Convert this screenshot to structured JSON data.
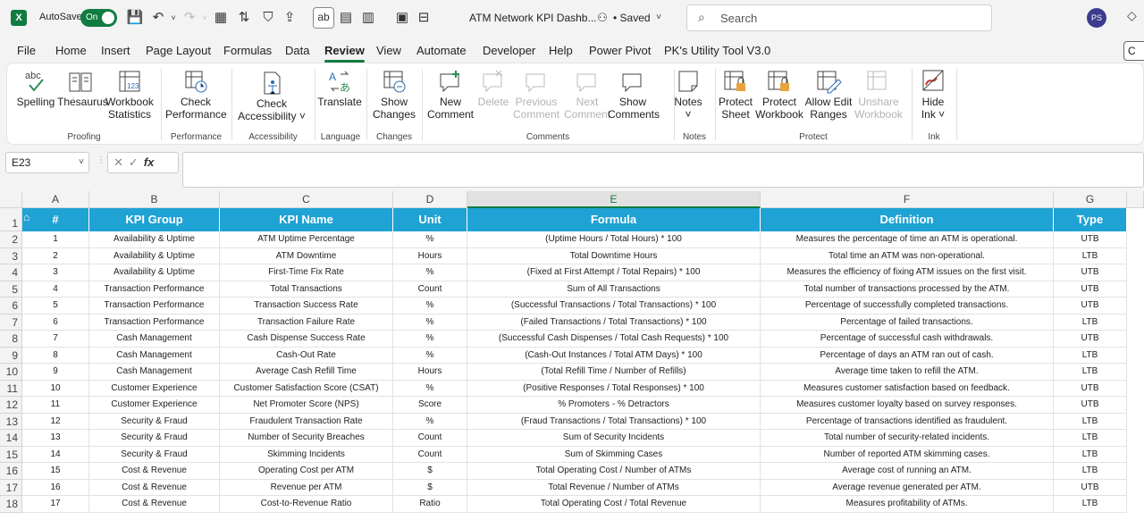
{
  "titlebar": {
    "app_icon_letter": "X",
    "autosave_label": "AutoSave",
    "autosave_state": "On",
    "document_title": "ATM Network KPI Dashb...",
    "save_status": "• Saved",
    "search_placeholder": "Search",
    "user_initials": "PS"
  },
  "menu": {
    "tabs": [
      "File",
      "Home",
      "Insert",
      "Page Layout",
      "Formulas",
      "Data",
      "Review",
      "View",
      "Automate",
      "Developer",
      "Help",
      "Power Pivot",
      "PK's Utility Tool V3.0"
    ],
    "active": "Review"
  },
  "ribbon": {
    "buttons": [
      {
        "id": "spelling",
        "line1": "Spelling",
        "line2": "",
        "icon_text": "abc",
        "disabled": false
      },
      {
        "id": "thesaurus",
        "line1": "Thesaurus",
        "line2": "",
        "disabled": false
      },
      {
        "id": "workbook-statistics",
        "line1": "Workbook",
        "line2": "Statistics",
        "icon_text": "123",
        "disabled": false
      },
      {
        "id": "check-performance",
        "line1": "Check",
        "line2": "Performance",
        "disabled": false
      },
      {
        "id": "check-accessibility",
        "line1": "Check",
        "line2": "Accessibility ˅",
        "disabled": false
      },
      {
        "id": "translate",
        "line1": "Translate",
        "line2": "",
        "disabled": false
      },
      {
        "id": "show-changes",
        "line1": "Show",
        "line2": "Changes",
        "disabled": false
      },
      {
        "id": "new-comment",
        "line1": "New",
        "line2": "Comment",
        "disabled": false
      },
      {
        "id": "delete",
        "line1": "Delete",
        "line2": "",
        "disabled": true
      },
      {
        "id": "previous-comment",
        "line1": "Previous",
        "line2": "Comment",
        "disabled": true
      },
      {
        "id": "next-comment",
        "line1": "Next",
        "line2": "Comment",
        "disabled": true
      },
      {
        "id": "show-comments",
        "line1": "Show",
        "line2": "Comments",
        "disabled": false
      },
      {
        "id": "notes",
        "line1": "Notes",
        "line2": "˅",
        "disabled": false
      },
      {
        "id": "protect-sheet",
        "line1": "Protect",
        "line2": "Sheet",
        "disabled": false
      },
      {
        "id": "protect-workbook",
        "line1": "Protect",
        "line2": "Workbook",
        "disabled": false
      },
      {
        "id": "allow-edit-ranges",
        "line1": "Allow Edit",
        "line2": "Ranges",
        "disabled": false
      },
      {
        "id": "unshare-workbook",
        "line1": "Unshare",
        "line2": "Workbook",
        "disabled": true
      },
      {
        "id": "hide-ink",
        "line1": "Hide",
        "line2": "Ink ˅",
        "disabled": false
      }
    ],
    "groups": [
      "Proofing",
      "Performance",
      "Accessibility",
      "Language",
      "Changes",
      "Comments",
      "Notes",
      "Protect",
      "Ink"
    ]
  },
  "formula_bar": {
    "name_box": "E23",
    "cancel_glyph": "✕",
    "enter_glyph": "✓",
    "fx_label": "fx",
    "formula": ""
  },
  "sheet": {
    "column_letters": [
      "A",
      "B",
      "C",
      "D",
      "E",
      "F",
      "G"
    ],
    "selected_column": "E",
    "row_numbers": [
      "1",
      "2",
      "3",
      "4",
      "5",
      "6",
      "7",
      "8",
      "9",
      "10",
      "11",
      "12",
      "13",
      "14",
      "15",
      "16",
      "17",
      "18"
    ],
    "header_color": "#1fa2d4",
    "headers": [
      "#",
      "KPI  Group",
      "KPI Name",
      "Unit",
      "Formula",
      "Definition",
      "Type"
    ],
    "rows": [
      [
        "1",
        "Availability & Uptime",
        "ATM Uptime Percentage",
        "%",
        "(Uptime Hours / Total Hours) * 100",
        "Measures the percentage of time an ATM is operational.",
        "UTB"
      ],
      [
        "2",
        "Availability & Uptime",
        "ATM Downtime",
        "Hours",
        "Total Downtime Hours",
        "Total time an ATM was non-operational.",
        "LTB"
      ],
      [
        "3",
        "Availability & Uptime",
        "First-Time Fix Rate",
        "%",
        "(Fixed at First Attempt / Total Repairs) * 100",
        "Measures the efficiency of fixing ATM issues on the first visit.",
        "UTB"
      ],
      [
        "4",
        "Transaction Performance",
        "Total Transactions",
        "Count",
        "Sum of All Transactions",
        "Total number of transactions processed by the ATM.",
        "UTB"
      ],
      [
        "5",
        "Transaction Performance",
        "Transaction Success Rate",
        "%",
        "(Successful Transactions / Total Transactions) * 100",
        "Percentage of successfully completed transactions.",
        "UTB"
      ],
      [
        "6",
        "Transaction Performance",
        "Transaction Failure Rate",
        "%",
        "(Failed Transactions / Total Transactions) * 100",
        "Percentage of failed transactions.",
        "LTB"
      ],
      [
        "7",
        "Cash Management",
        "Cash Dispense Success Rate",
        "%",
        "(Successful Cash Dispenses / Total Cash Requests) * 100",
        "Percentage of successful cash withdrawals.",
        "UTB"
      ],
      [
        "8",
        "Cash Management",
        "Cash-Out Rate",
        "%",
        "(Cash-Out Instances / Total ATM Days) * 100",
        "Percentage of days an ATM ran out of cash.",
        "LTB"
      ],
      [
        "9",
        "Cash Management",
        "Average Cash Refill Time",
        "Hours",
        "(Total Refill Time / Number of Refills)",
        "Average time taken to refill the ATM.",
        "LTB"
      ],
      [
        "10",
        "Customer Experience",
        "Customer Satisfaction Score (CSAT)",
        "%",
        "(Positive Responses / Total Responses) * 100",
        "Measures customer satisfaction based on feedback.",
        "UTB"
      ],
      [
        "11",
        "Customer Experience",
        "Net Promoter Score (NPS)",
        "Score",
        "% Promoters - % Detractors",
        "Measures customer loyalty based on survey responses.",
        "UTB"
      ],
      [
        "12",
        "Security & Fraud",
        "Fraudulent Transaction Rate",
        "%",
        "(Fraud Transactions / Total Transactions) * 100",
        "Percentage of transactions identified as fraudulent.",
        "LTB"
      ],
      [
        "13",
        "Security & Fraud",
        "Number of Security Breaches",
        "Count",
        "Sum of Security Incidents",
        "Total number of security-related incidents.",
        "LTB"
      ],
      [
        "14",
        "Security & Fraud",
        "Skimming Incidents",
        "Count",
        "Sum of Skimming Cases",
        "Number of reported ATM skimming cases.",
        "LTB"
      ],
      [
        "15",
        "Cost & Revenue",
        "Operating Cost per ATM",
        "$",
        "Total Operating Cost / Number of ATMs",
        "Average cost of running an ATM.",
        "LTB"
      ],
      [
        "16",
        "Cost & Revenue",
        "Revenue per ATM",
        "$",
        "Total Revenue / Number of ATMs",
        "Average revenue generated per ATM.",
        "UTB"
      ],
      [
        "17",
        "Cost & Revenue",
        "Cost-to-Revenue Ratio",
        "Ratio",
        "Total Operating Cost / Total Revenue",
        "Measures profitability of ATMs.",
        "LTB"
      ]
    ]
  }
}
